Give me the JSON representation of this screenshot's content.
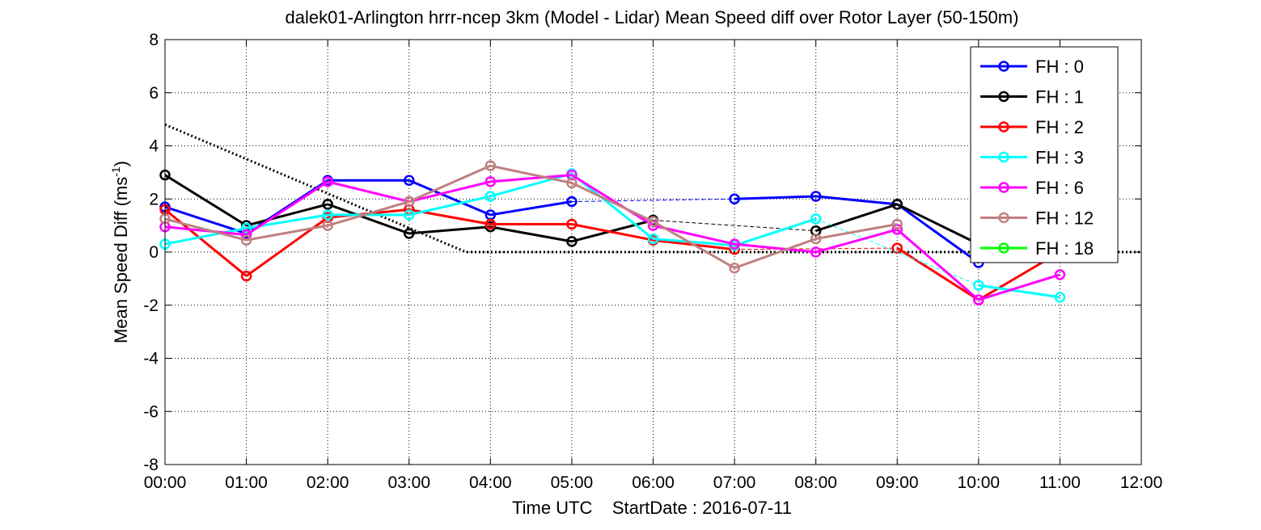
{
  "chart_data": {
    "type": "line",
    "title": "dalek01-Arlington hrrr-ncep 3km (Model - Lidar) Mean Speed diff over Rotor Layer (50-150m)",
    "xlabel": "Time UTC    StartDate : 2016-07-11",
    "ylabel": "Mean Speed Diff (ms",
    "ylabel_unit_superscript": "-1",
    "ylabel_suffix": ")",
    "xlim": [
      0,
      12
    ],
    "ylim": [
      -8,
      8
    ],
    "grid": true,
    "legend_position": "top-right",
    "x_ticks": [
      {
        "v": 0,
        "label": "00:00"
      },
      {
        "v": 1,
        "label": "01:00"
      },
      {
        "v": 2,
        "label": "02:00"
      },
      {
        "v": 3,
        "label": "03:00"
      },
      {
        "v": 4,
        "label": "04:00"
      },
      {
        "v": 5,
        "label": "05:00"
      },
      {
        "v": 6,
        "label": "06:00"
      },
      {
        "v": 7,
        "label": "07:00"
      },
      {
        "v": 8,
        "label": "08:00"
      },
      {
        "v": 9,
        "label": "09:00"
      },
      {
        "v": 10,
        "label": "10:00"
      },
      {
        "v": 11,
        "label": "11:00"
      },
      {
        "v": 12,
        "label": "12:00"
      }
    ],
    "y_ticks": [
      {
        "v": 8,
        "label": "8"
      },
      {
        "v": 6,
        "label": "6"
      },
      {
        "v": 4,
        "label": "4"
      },
      {
        "v": 2,
        "label": "2"
      },
      {
        "v": 0,
        "label": "0"
      },
      {
        "v": -2,
        "label": "-2"
      },
      {
        "v": -4,
        "label": "-4"
      },
      {
        "v": -6,
        "label": "-6"
      },
      {
        "v": -8,
        "label": "-8"
      }
    ],
    "reference_line": {
      "style": "dotted",
      "color": "#000000",
      "points": [
        [
          0,
          4.8
        ],
        [
          3.7,
          0
        ],
        [
          12,
          0
        ]
      ]
    },
    "series": [
      {
        "name": "FH : 0",
        "color": "#0000ff",
        "x": [
          0,
          1,
          2,
          3,
          4,
          5,
          7,
          8,
          9,
          10
        ],
        "y": [
          1.7,
          0.7,
          2.7,
          2.7,
          1.4,
          1.9,
          2.0,
          2.1,
          1.8,
          -0.4
        ]
      },
      {
        "name": "FH : 1",
        "color": "#000000",
        "x": [
          0,
          1,
          2,
          3,
          4,
          5,
          6,
          8,
          9,
          10
        ],
        "y": [
          2.9,
          1.0,
          1.8,
          0.7,
          0.95,
          0.4,
          1.2,
          0.8,
          1.8,
          0.3
        ]
      },
      {
        "name": "FH : 2",
        "color": "#ff0000",
        "x": [
          0,
          1,
          2,
          3,
          4,
          5,
          6,
          7,
          9,
          10,
          11
        ],
        "y": [
          1.6,
          -0.9,
          1.3,
          1.6,
          1.05,
          1.05,
          0.45,
          0.1,
          0.15,
          -1.8,
          0.0
        ]
      },
      {
        "name": "FH : 3",
        "color": "#00ffff",
        "x": [
          0,
          1,
          2,
          3,
          4,
          5,
          6,
          7,
          8,
          10,
          11
        ],
        "y": [
          0.3,
          0.9,
          1.4,
          1.4,
          2.1,
          2.95,
          0.5,
          0.25,
          1.25,
          -1.25,
          -1.7
        ]
      },
      {
        "name": "FH : 6",
        "color": "#ff00ff",
        "x": [
          0,
          1,
          2,
          3,
          4,
          5,
          6,
          7,
          8,
          9,
          10,
          11
        ],
        "y": [
          0.95,
          0.65,
          2.65,
          1.9,
          2.65,
          2.9,
          1.0,
          0.3,
          0.0,
          0.85,
          -1.8,
          -0.85
        ]
      },
      {
        "name": "FH : 12",
        "color": "#c08080",
        "x": [
          0,
          1,
          2,
          3,
          4,
          5,
          6,
          7,
          8,
          9
        ],
        "y": [
          1.25,
          0.45,
          1.0,
          1.9,
          3.25,
          2.6,
          1.15,
          -0.6,
          0.5,
          1.05
        ]
      },
      {
        "name": "FH : 18",
        "color": "#00ff00",
        "x": [],
        "y": []
      }
    ]
  }
}
